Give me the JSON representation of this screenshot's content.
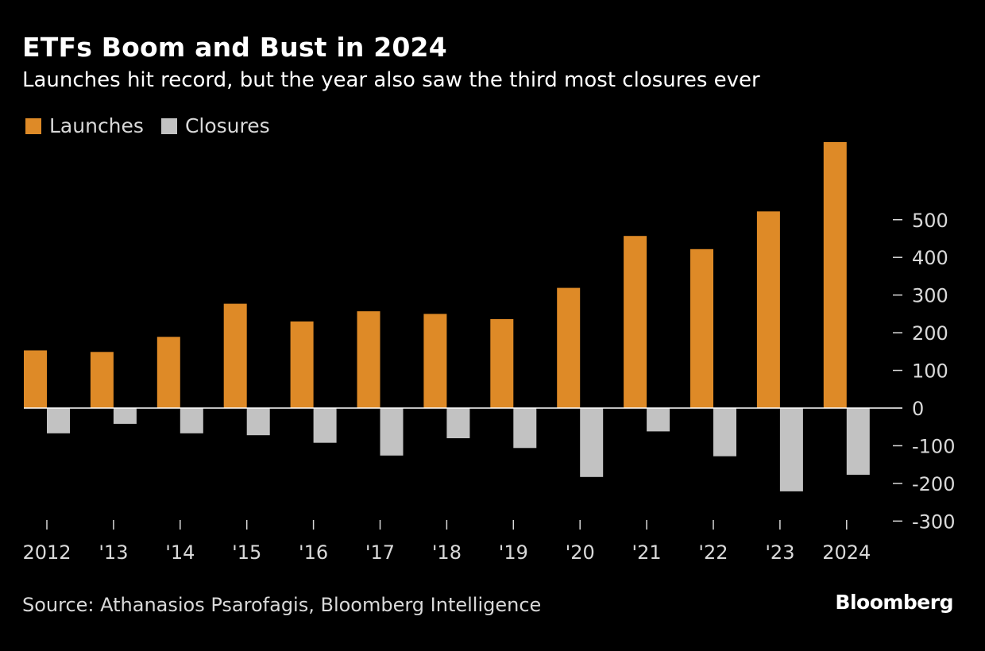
{
  "title": "ETFs Boom and Bust in 2024",
  "subtitle": "Launches hit record, but the year also saw the third most closures ever",
  "source": "Source: Athanasios Psarofagis, Bloomberg Intelligence",
  "brand": "Bloomberg",
  "colors": {
    "background": "#000000",
    "launches": "#de8a27",
    "closures": "#c2c2c2",
    "text": "#ffffff",
    "axis_text": "#d9d9d9"
  },
  "legend": [
    {
      "label": "Launches",
      "color": "#de8a27"
    },
    {
      "label": "Closures",
      "color": "#c2c2c2"
    }
  ],
  "chart_data": {
    "type": "bar",
    "title": "ETFs Boom and Bust in 2024",
    "subtitle": "Launches hit record, but the year also saw the third most closures ever",
    "xlabel": "",
    "ylabel": "",
    "categories": [
      "2012",
      "'13",
      "'14",
      "'15",
      "'16",
      "'17",
      "'18",
      "'19",
      "'20",
      "'21",
      "'22",
      "'23",
      "2024"
    ],
    "series": [
      {
        "name": "Launches",
        "values": [
          153,
          149,
          189,
          277,
          230,
          257,
          250,
          236,
          319,
          457,
          422,
          522,
          706
        ]
      },
      {
        "name": "Closures",
        "values": [
          -67,
          -42,
          -67,
          -72,
          -92,
          -126,
          -80,
          -106,
          -183,
          -62,
          -128,
          -221,
          -177
        ]
      }
    ],
    "yticks": [
      500,
      400,
      300,
      200,
      100,
      0,
      -100,
      -200,
      -300
    ],
    "ytick_labels": [
      "500",
      "400",
      "300",
      "200",
      "100",
      "0",
      "-100",
      "-200",
      "-300"
    ],
    "ylim": [
      -300,
      706
    ],
    "grid": false,
    "legend_position": "top-left",
    "y_axis_side": "right"
  }
}
